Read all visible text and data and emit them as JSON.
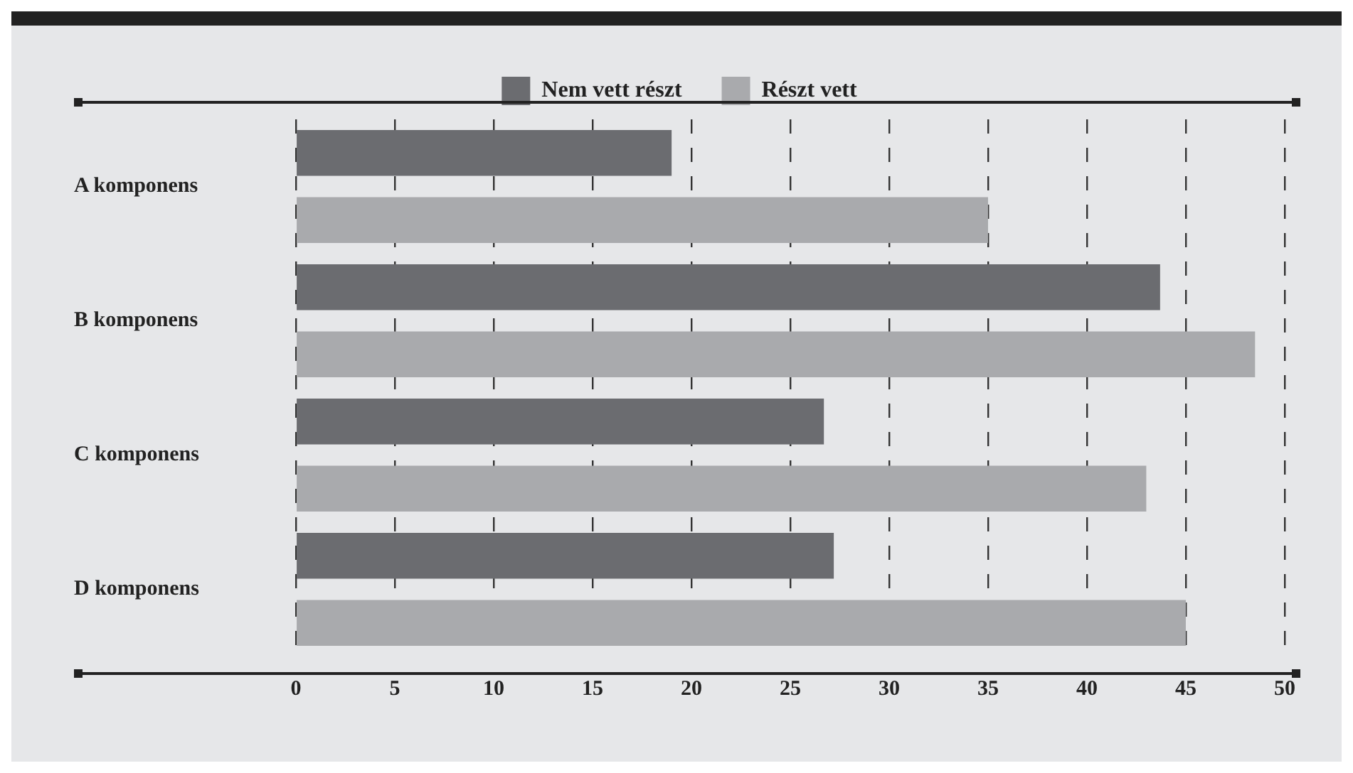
{
  "chart_data": {
    "type": "bar",
    "orientation": "horizontal",
    "categories": [
      "A komponens",
      "B komponens",
      "C komponens",
      "D komponens"
    ],
    "series": [
      {
        "name": "Nem vett részt",
        "color": "#6b6c70",
        "values": [
          19,
          43.7,
          26.7,
          27.2
        ]
      },
      {
        "name": "Részt vett",
        "color": "#a9aaad",
        "values": [
          35,
          48.5,
          43,
          45
        ]
      }
    ],
    "xlim": [
      0,
      50
    ],
    "xticks": [
      0,
      5,
      10,
      15,
      20,
      25,
      30,
      35,
      40,
      45,
      50
    ],
    "grid": "x",
    "legend": "top"
  }
}
